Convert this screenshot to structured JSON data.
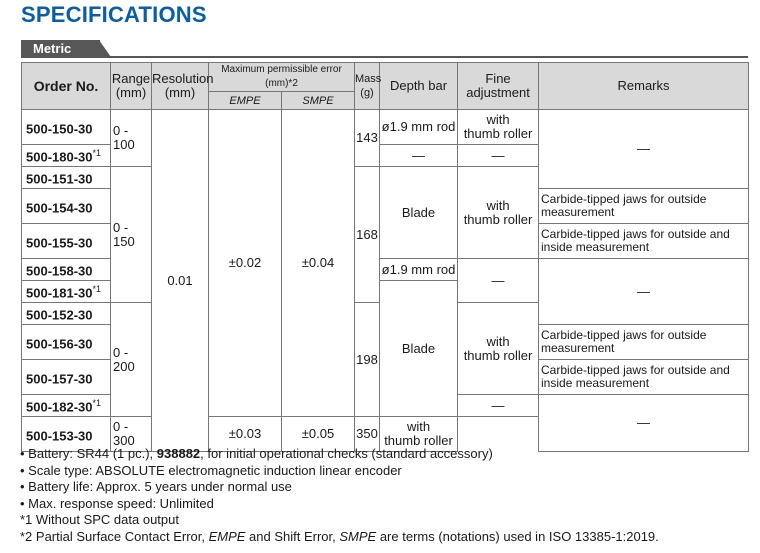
{
  "title": "SPECIFICATIONS",
  "section_tab": "Metric",
  "headers": {
    "order_no": "Order No.",
    "range_top": "Range",
    "range_unit": "(mm)",
    "resolution_top": "Resolution",
    "resolution_unit": "(mm)",
    "mpe": "Maximum permissible error (mm)*2",
    "empe": "EMPE",
    "smpe": "SMPE",
    "mass_top": "Mass",
    "mass_unit": "(g)",
    "depth_bar": "Depth bar",
    "fine_top": "Fine",
    "fine_bottom": "adjustment",
    "remarks": "Remarks"
  },
  "rows": [
    {
      "order": "500-150-30",
      "note": ""
    },
    {
      "order": "500-180-30",
      "note": "*1"
    },
    {
      "order": "500-151-30",
      "note": ""
    },
    {
      "order": "500-154-30",
      "note": ""
    },
    {
      "order": "500-155-30",
      "note": ""
    },
    {
      "order": "500-158-30",
      "note": ""
    },
    {
      "order": "500-181-30",
      "note": "*1"
    },
    {
      "order": "500-152-30",
      "note": ""
    },
    {
      "order": "500-156-30",
      "note": ""
    },
    {
      "order": "500-157-30",
      "note": ""
    },
    {
      "order": "500-182-30",
      "note": "*1"
    },
    {
      "order": "500-153-30",
      "note": ""
    }
  ],
  "cells": {
    "range_100": "0 - 100",
    "range_150": "0 - 150",
    "range_200": "0 - 200",
    "range_300": "0 - 300",
    "resolution": "0.01",
    "empe_main": "±0.02",
    "smpe_main": "±0.04",
    "empe_300": "±0.03",
    "smpe_300": "±0.05",
    "mass_143": "143",
    "mass_168": "168",
    "mass_198": "198",
    "mass_350": "350",
    "depth_rod": "ø1.9 mm rod",
    "depth_blade": "Blade",
    "fine_with": "with",
    "fine_thumb": "thumb roller",
    "dash": "—",
    "remark_outside": "Carbide-tipped jaws for outside measurement",
    "remark_outside_inside": "Carbide-tipped jaws for outside and inside measurement"
  },
  "notes": {
    "battery_pre": "• Battery: SR44 (1 pc.), ",
    "battery_bold": "938882",
    "battery_post": ", for initial operational checks (standard accessory)",
    "scale": "• Scale type: ABSOLUTE electromagnetic induction linear encoder",
    "battery_life": "• Battery life: Approx. 5 years under normal use",
    "response": "• Max. response speed: Unlimited",
    "fn1": "*1 Without SPC data output",
    "fn2_a": "*2 Partial Surface Contact Error, ",
    "fn2_empe": "EMPE",
    "fn2_b": " and Shift Error, ",
    "fn2_smpe": "SMPE",
    "fn2_c": " are terms (notations) used in ISO 13385-1:2019."
  }
}
